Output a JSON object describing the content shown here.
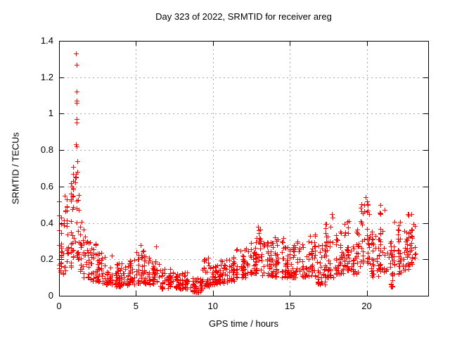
{
  "chart_data": {
    "type": "scatter",
    "title": "Day 323 of 2022, SRMTID for receiver areg",
    "xlabel": "GPS time / hours",
    "ylabel": "SRMTID / TECUs",
    "xlim": [
      0,
      24
    ],
    "ylim": [
      0,
      1.4
    ],
    "xticks": [
      0,
      5,
      10,
      15,
      20
    ],
    "yticks": [
      0,
      0.2,
      0.4,
      0.6,
      0.8,
      1,
      1.2,
      1.4
    ],
    "xtick_labels": [
      "0",
      "5",
      "10",
      "15",
      "20"
    ],
    "ytick_labels": [
      "0",
      "0.2",
      "0.4",
      "0.6",
      "0.8",
      "1",
      "1.2",
      "1.4"
    ],
    "grid": "dashed-major-both-axes",
    "legend": "none",
    "marker": {
      "shape": "plus",
      "color": "#ff0000",
      "size": 7
    },
    "grid_color": "#a8a8a8",
    "border_color": "#000000",
    "background_color": "#ffffff",
    "random_seed": 323,
    "x_data_range": [
      0,
      23.2
    ],
    "envelope_bins": [
      [
        0.0,
        0.3,
        0.12,
        0.45,
        20
      ],
      [
        0.3,
        0.6,
        0.14,
        0.55,
        20
      ],
      [
        0.6,
        0.9,
        0.16,
        0.62,
        20
      ],
      [
        0.9,
        1.1,
        0.2,
        0.78,
        14
      ],
      [
        1.1,
        1.35,
        0.2,
        0.62,
        16
      ],
      [
        1.35,
        1.6,
        0.13,
        0.45,
        16
      ],
      [
        1.6,
        2.0,
        0.1,
        0.38,
        25
      ],
      [
        2.0,
        2.5,
        0.08,
        0.3,
        30
      ],
      [
        2.5,
        3.0,
        0.07,
        0.25,
        30
      ],
      [
        3.0,
        3.5,
        0.06,
        0.22,
        30
      ],
      [
        3.5,
        4.5,
        0.05,
        0.18,
        60
      ],
      [
        4.5,
        5.0,
        0.06,
        0.2,
        30
      ],
      [
        5.0,
        5.5,
        0.07,
        0.27,
        30
      ],
      [
        5.5,
        6.0,
        0.06,
        0.22,
        30
      ],
      [
        6.0,
        6.5,
        0.05,
        0.2,
        30
      ],
      [
        6.5,
        7.5,
        0.04,
        0.15,
        60
      ],
      [
        7.5,
        8.5,
        0.04,
        0.13,
        60
      ],
      [
        8.5,
        9.3,
        0.02,
        0.1,
        48
      ],
      [
        9.3,
        9.8,
        0.05,
        0.2,
        30
      ],
      [
        9.8,
        10.3,
        0.06,
        0.18,
        30
      ],
      [
        10.3,
        11.0,
        0.07,
        0.2,
        42
      ],
      [
        11.0,
        11.5,
        0.08,
        0.22,
        30
      ],
      [
        11.5,
        12.3,
        0.1,
        0.26,
        48
      ],
      [
        12.3,
        12.8,
        0.12,
        0.3,
        30
      ],
      [
        12.8,
        13.2,
        0.14,
        0.37,
        24
      ],
      [
        13.2,
        14.0,
        0.11,
        0.3,
        48
      ],
      [
        14.0,
        14.6,
        0.1,
        0.32,
        36
      ],
      [
        14.6,
        15.2,
        0.1,
        0.28,
        36
      ],
      [
        15.2,
        16.0,
        0.1,
        0.3,
        48
      ],
      [
        16.0,
        16.7,
        0.11,
        0.34,
        42
      ],
      [
        16.7,
        17.3,
        0.06,
        0.28,
        36
      ],
      [
        17.3,
        17.9,
        0.1,
        0.42,
        36
      ],
      [
        17.9,
        18.5,
        0.12,
        0.36,
        36
      ],
      [
        18.5,
        19.1,
        0.14,
        0.42,
        36
      ],
      [
        19.1,
        19.6,
        0.12,
        0.38,
        30
      ],
      [
        19.6,
        20.2,
        0.18,
        0.52,
        36
      ],
      [
        20.2,
        20.8,
        0.1,
        0.36,
        36
      ],
      [
        20.8,
        21.3,
        0.13,
        0.46,
        30
      ],
      [
        21.3,
        21.7,
        0.05,
        0.3,
        24
      ],
      [
        21.7,
        22.3,
        0.12,
        0.42,
        36
      ],
      [
        22.3,
        22.8,
        0.14,
        0.45,
        30
      ],
      [
        22.8,
        23.2,
        0.17,
        0.44,
        24
      ]
    ],
    "outlier_points": [
      [
        0.02,
        0.52
      ],
      [
        0.02,
        0.44
      ],
      [
        0.02,
        0.36
      ],
      [
        0.02,
        0.28
      ],
      [
        0.02,
        0.2
      ],
      [
        0.02,
        0.15
      ],
      [
        0.35,
        0.55
      ],
      [
        0.5,
        0.53
      ],
      [
        0.78,
        0.62
      ],
      [
        0.82,
        0.6
      ],
      [
        1.1,
        1.33
      ],
      [
        1.12,
        1.27
      ],
      [
        1.13,
        1.12
      ],
      [
        1.15,
        1.07
      ],
      [
        1.16,
        1.06
      ],
      [
        1.12,
        0.97
      ],
      [
        1.16,
        0.95
      ],
      [
        1.1,
        0.83
      ],
      [
        1.14,
        0.82
      ],
      [
        1.18,
        0.74
      ],
      [
        1.2,
        0.68
      ],
      [
        1.08,
        0.65
      ],
      [
        5.3,
        0.28
      ],
      [
        6.3,
        0.27
      ],
      [
        9.7,
        0.21
      ],
      [
        12.95,
        0.38
      ],
      [
        13.0,
        0.36
      ],
      [
        17.75,
        0.45
      ],
      [
        17.8,
        0.43
      ],
      [
        19.95,
        0.54
      ],
      [
        20.0,
        0.52
      ],
      [
        20.05,
        0.5
      ],
      [
        20.9,
        0.5
      ],
      [
        21.15,
        0.47
      ],
      [
        22.9,
        0.45
      ]
    ]
  }
}
